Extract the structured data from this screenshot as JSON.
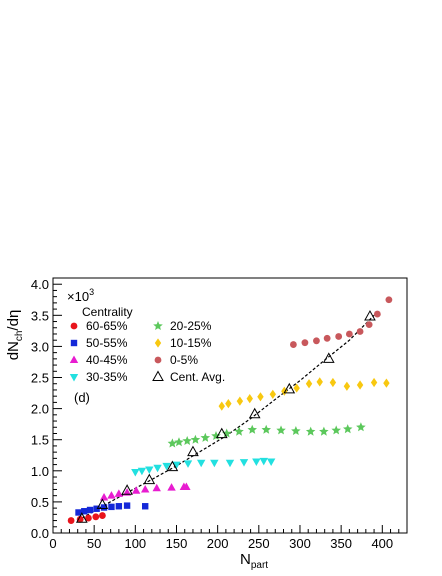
{
  "chart_data": {
    "type": "scatter",
    "title": "",
    "xlabel_main": "N",
    "xlabel_sub": "part",
    "ylabel_main": "dN",
    "ylabel_sub": "ch",
    "ylabel_tail": "/dη",
    "multiplier_text": "×10",
    "multiplier_exp": "3",
    "legend_title": "Centrality",
    "panel_label": "(d)",
    "xlim": [
      0,
      430
    ],
    "ylim": [
      0.0,
      4.1
    ],
    "x_ticks": [
      0,
      50,
      100,
      150,
      200,
      250,
      300,
      350,
      400
    ],
    "y_ticks": [
      0.0,
      0.5,
      1.0,
      1.5,
      2.0,
      2.5,
      3.0,
      3.5,
      4.0
    ],
    "x_tick_labels": [
      "0",
      "50",
      "100",
      "150",
      "200",
      "250",
      "300",
      "350",
      "400"
    ],
    "y_tick_labels": [
      "0.0",
      "0.5",
      "1.0",
      "1.5",
      "2.0",
      "2.5",
      "3.0",
      "3.5",
      "4.0"
    ],
    "series": [
      {
        "name": "60-65%",
        "marker": "circle",
        "color": "#e8141c",
        "x": [
          22,
          33,
          43,
          52,
          60
        ],
        "y": [
          0.2,
          0.22,
          0.24,
          0.26,
          0.28
        ]
      },
      {
        "name": "50-55%",
        "marker": "square",
        "color": "#1428d8",
        "x": [
          31,
          38,
          45,
          53,
          62,
          71,
          80,
          90,
          112
        ],
        "y": [
          0.33,
          0.35,
          0.37,
          0.39,
          0.41,
          0.42,
          0.43,
          0.44,
          0.43
        ]
      },
      {
        "name": "40-45%",
        "marker": "triangle-up",
        "color": "#e81cd0",
        "x": [
          62,
          71,
          80,
          90,
          101,
          112,
          126,
          144,
          159,
          162
        ],
        "y": [
          0.57,
          0.6,
          0.63,
          0.65,
          0.68,
          0.7,
          0.72,
          0.73,
          0.74,
          0.74
        ]
      },
      {
        "name": "30-35%",
        "marker": "triangle-down",
        "color": "#22e0e0",
        "x": [
          100,
          108,
          117,
          127,
          138,
          150,
          164,
          180,
          196,
          215,
          232,
          247,
          256,
          265
        ],
        "y": [
          0.98,
          1.0,
          1.02,
          1.05,
          1.08,
          1.1,
          1.12,
          1.13,
          1.13,
          1.13,
          1.14,
          1.15,
          1.16,
          1.15
        ]
      },
      {
        "name": "20-25%",
        "marker": "star",
        "color": "#5cc85c",
        "x": [
          145,
          153,
          163,
          173,
          185,
          198,
          211,
          226,
          242,
          259,
          277,
          295,
          313,
          329,
          344,
          358,
          374
        ],
        "y": [
          1.44,
          1.46,
          1.48,
          1.5,
          1.53,
          1.56,
          1.6,
          1.63,
          1.66,
          1.66,
          1.65,
          1.64,
          1.63,
          1.63,
          1.65,
          1.67,
          1.7
        ]
      },
      {
        "name": "10-15%",
        "marker": "diamond",
        "color": "#f8c810",
        "x": [
          205,
          213,
          227,
          239,
          252,
          267,
          281,
          296,
          311,
          324,
          340,
          357,
          373,
          390,
          405
        ],
        "y": [
          2.04,
          2.08,
          2.12,
          2.16,
          2.19,
          2.23,
          2.28,
          2.33,
          2.4,
          2.43,
          2.42,
          2.36,
          2.38,
          2.42,
          2.41
        ]
      },
      {
        "name": "0-5%",
        "marker": "circle",
        "color": "#c8585c",
        "x": [
          292,
          306,
          320,
          333,
          347,
          360,
          373,
          384,
          394,
          408
        ],
        "y": [
          3.03,
          3.06,
          3.09,
          3.13,
          3.16,
          3.2,
          3.24,
          3.35,
          3.52,
          3.75
        ]
      },
      {
        "name": "Cent. Avg.",
        "marker": "open-triangle",
        "color": "#000000",
        "x": [
          35,
          60,
          90,
          117,
          145,
          170,
          205,
          245,
          287,
          335,
          385
        ],
        "y": [
          0.23,
          0.45,
          0.68,
          0.85,
          1.06,
          1.3,
          1.59,
          1.91,
          2.31,
          2.8,
          3.48
        ]
      }
    ],
    "fit_line": {
      "style": "dashed",
      "color": "#000000",
      "x": [
        30,
        60,
        90,
        120,
        150,
        180,
        210,
        240,
        270,
        300,
        330,
        360,
        390
      ],
      "y": [
        0.2,
        0.43,
        0.65,
        0.86,
        1.08,
        1.32,
        1.56,
        1.84,
        2.15,
        2.45,
        2.78,
        3.1,
        3.5
      ]
    }
  }
}
